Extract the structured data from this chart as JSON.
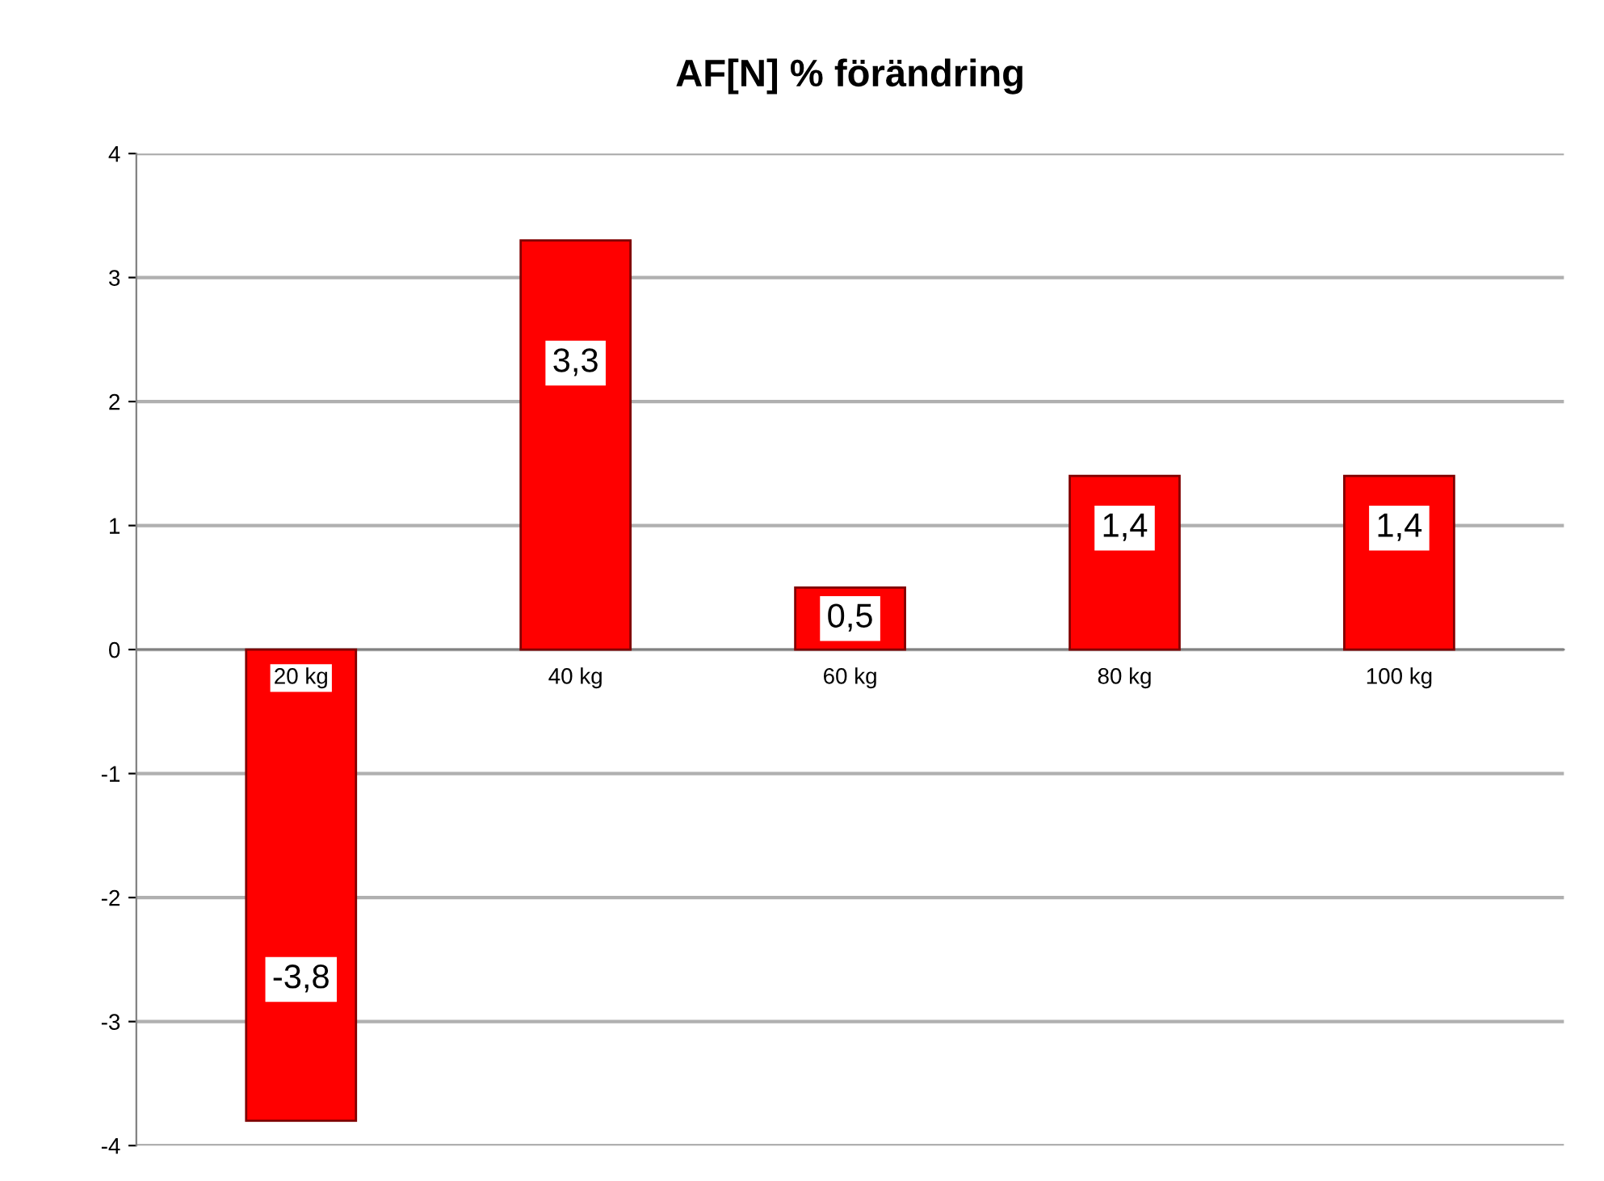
{
  "chart_data": {
    "type": "bar",
    "title": "AF[N] % förändring",
    "categories": [
      "20 kg",
      "40 kg",
      "60 kg",
      "80 kg",
      "100 kg"
    ],
    "values": [
      -3.8,
      3.3,
      0.5,
      1.4,
      1.4
    ],
    "value_labels": [
      "-3,8",
      "3,3",
      "0,5",
      "1,4",
      "1,4"
    ],
    "color": "#ff0000",
    "ylim": [
      -4,
      4
    ],
    "yticks": [
      -4,
      -3,
      -2,
      -1,
      0,
      1,
      2,
      3,
      4
    ],
    "grid": "y"
  }
}
